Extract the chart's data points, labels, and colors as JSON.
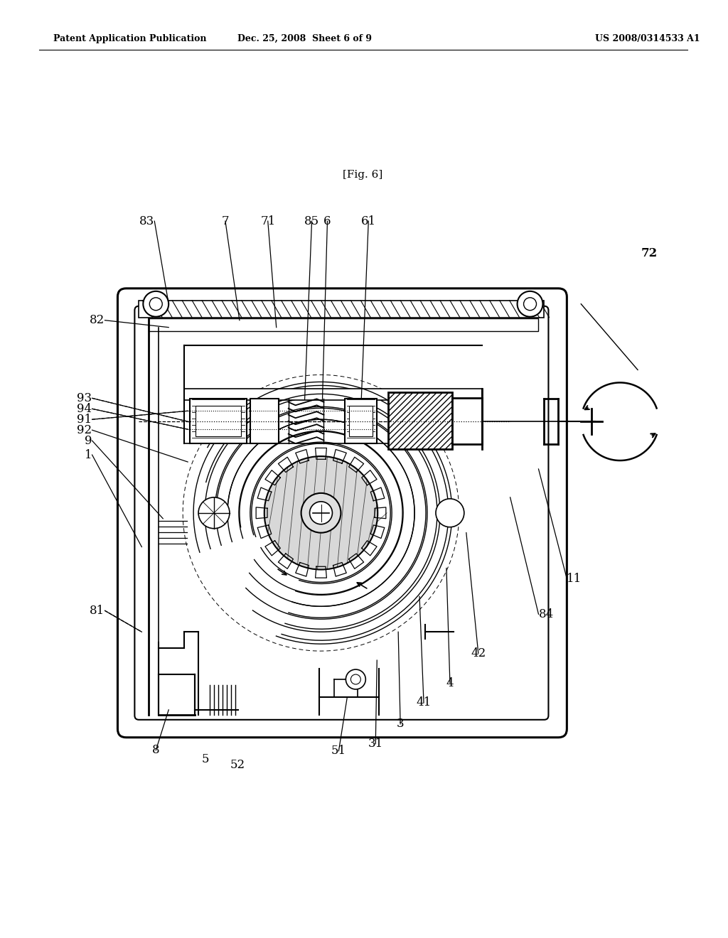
{
  "title": "[Fig. 6]",
  "header_left": "Patent Application Publication",
  "header_center": "Dec. 25, 2008  Sheet 6 of 9",
  "header_right": "US 2008/0314533 A1",
  "bg_color": "#ffffff",
  "line_color": "#000000",
  "fig_title_fontsize": 11,
  "header_fontsize": 9,
  "label_fontsize": 12
}
